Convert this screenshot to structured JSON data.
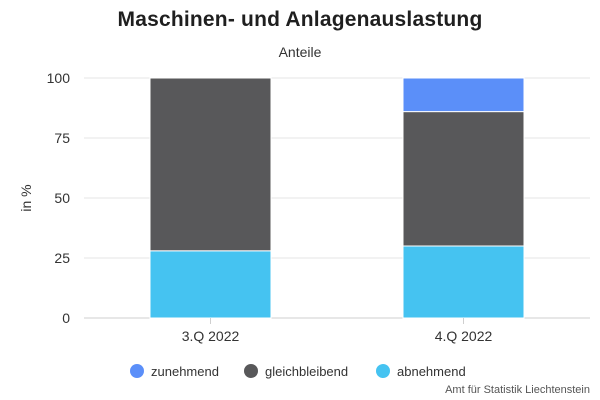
{
  "chart_data": {
    "type": "bar",
    "stacked": true,
    "title": "Maschinen- und Anlagenauslastung",
    "subtitle": "Anteile",
    "xlabel": "",
    "ylabel": "in %",
    "ylim": [
      0,
      100
    ],
    "yticks": [
      "0",
      "25",
      "50",
      "75",
      "100"
    ],
    "categories": [
      "3.Q 2022",
      "4.Q 2022"
    ],
    "series": [
      {
        "name": "abnehmend",
        "values": [
          28,
          30
        ],
        "color": "#45c3f1"
      },
      {
        "name": "gleichbleibend",
        "values": [
          72,
          56
        ],
        "color": "#58585a"
      },
      {
        "name": "zunehmend",
        "values": [
          0,
          14
        ],
        "color": "#5b8ff9"
      }
    ],
    "legend": {
      "position": "bottom",
      "order": [
        "zunehmend",
        "gleichbleibend",
        "abnehmend"
      ]
    },
    "grid": true
  },
  "credit": "Amt für Statistik Liechtenstein"
}
